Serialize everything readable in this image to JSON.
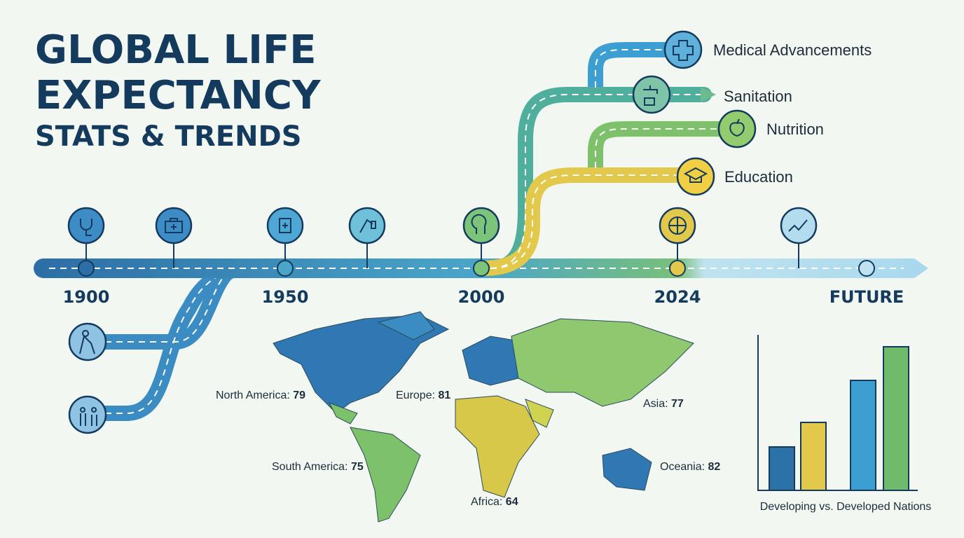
{
  "header": {
    "title_lines": [
      "GLOBAL LIFE",
      "EXPECTANCY"
    ],
    "subtitle": "STATS & TRENDS"
  },
  "timeline": {
    "labels": [
      "1900",
      "1950",
      "2000",
      "2024",
      "FUTURE"
    ]
  },
  "factors": [
    "Medical Advancements",
    "Sanitation",
    "Nutrition",
    "Education"
  ],
  "regions": [
    {
      "label": "North America:",
      "value": 79
    },
    {
      "label": "Europe:",
      "value": 81
    },
    {
      "label": "Asia:",
      "value": 77
    },
    {
      "label": "South America:",
      "value": 75
    },
    {
      "label": "Oceania:",
      "value": 82
    },
    {
      "label": "Africa:",
      "value": 64
    }
  ],
  "comparison": {
    "caption": "Developing vs. Developed Nations",
    "values": [
      62,
      97,
      157,
      205
    ],
    "ylim": [
      0,
      222
    ],
    "colors": [
      "#2a72a8",
      "#e3c94b",
      "#3d9fd1",
      "#6dbb6b"
    ]
  }
}
